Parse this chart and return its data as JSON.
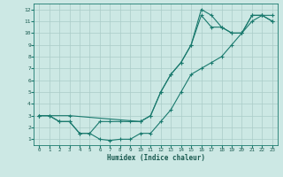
{
  "xlabel": "Humidex (Indice chaleur)",
  "ylabel": "",
  "xlim": [
    -0.5,
    23.5
  ],
  "ylim": [
    0.5,
    12.5
  ],
  "xticks": [
    0,
    1,
    2,
    3,
    4,
    5,
    6,
    7,
    8,
    9,
    10,
    11,
    12,
    13,
    14,
    15,
    16,
    17,
    18,
    19,
    20,
    21,
    22,
    23
  ],
  "yticks": [
    1,
    2,
    3,
    4,
    5,
    6,
    7,
    8,
    9,
    10,
    11,
    12
  ],
  "bg_color": "#cce8e4",
  "grid_color": "#aaccc8",
  "line_color": "#1a7a6e",
  "line1_x": [
    0,
    1,
    2,
    3,
    4,
    5,
    6,
    7,
    8,
    9,
    10,
    11,
    12,
    13,
    14,
    15,
    16,
    17,
    18,
    19,
    20,
    21,
    22,
    23
  ],
  "line1_y": [
    3.0,
    3.0,
    2.5,
    2.5,
    1.5,
    1.5,
    1.0,
    0.9,
    1.0,
    1.0,
    1.5,
    1.5,
    2.5,
    3.5,
    5.0,
    6.5,
    7.0,
    7.5,
    8.0,
    9.0,
    10.0,
    11.0,
    11.5,
    11.5
  ],
  "line2_x": [
    0,
    1,
    2,
    3,
    4,
    5,
    6,
    7,
    8,
    9,
    10,
    11,
    12,
    13,
    14,
    15,
    16,
    17,
    18,
    19,
    20,
    21,
    22,
    23
  ],
  "line2_y": [
    3.0,
    3.0,
    2.5,
    2.5,
    1.5,
    1.5,
    2.5,
    2.5,
    2.5,
    2.5,
    2.5,
    3.0,
    5.0,
    6.5,
    7.5,
    9.0,
    11.5,
    10.5,
    10.5,
    10.0,
    10.0,
    11.5,
    11.5,
    11.0
  ],
  "line3_x": [
    0,
    3,
    10,
    11,
    12,
    13,
    14,
    15,
    16,
    17,
    18,
    19,
    20,
    21,
    22,
    23
  ],
  "line3_y": [
    3.0,
    3.0,
    2.5,
    3.0,
    5.0,
    6.5,
    7.5,
    9.0,
    12.0,
    11.5,
    10.5,
    10.0,
    10.0,
    11.5,
    11.5,
    11.0
  ]
}
